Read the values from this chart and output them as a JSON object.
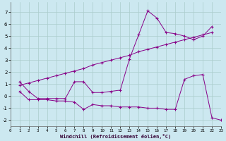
{
  "xlabel": "Windchill (Refroidissement éolien,°C)",
  "bg_color": "#cce8f0",
  "line_color": "#880088",
  "grid_color": "#aacccc",
  "xmin": 0,
  "xmax": 23,
  "ymin": -2.5,
  "ymax": 7.8,
  "yticks": [
    -2,
    -1,
    0,
    1,
    2,
    3,
    4,
    5,
    6,
    7
  ],
  "xticks": [
    0,
    1,
    2,
    3,
    4,
    5,
    6,
    7,
    8,
    9,
    10,
    11,
    12,
    13,
    14,
    15,
    16,
    17,
    18,
    19,
    20,
    21,
    22,
    23
  ],
  "line1_x": [
    1,
    2,
    3,
    4,
    5,
    6,
    7,
    8,
    9,
    10,
    11,
    12,
    13,
    14,
    15,
    16,
    17,
    18,
    19,
    20,
    21,
    22
  ],
  "line1_y": [
    1.2,
    0.4,
    -0.2,
    -0.2,
    -0.2,
    -0.2,
    1.2,
    1.2,
    0.3,
    0.3,
    0.4,
    0.5,
    3.1,
    5.1,
    7.1,
    6.5,
    5.3,
    5.2,
    5.0,
    4.7,
    5.0,
    5.8
  ],
  "line2_x": [
    1,
    2,
    3,
    4,
    5,
    6,
    7,
    8,
    9,
    10,
    11,
    12,
    13,
    14,
    15,
    16,
    17,
    18,
    19,
    20,
    21,
    22
  ],
  "line2_y": [
    0.9,
    1.1,
    1.3,
    1.5,
    1.7,
    1.9,
    2.1,
    2.3,
    2.6,
    2.8,
    3.0,
    3.2,
    3.4,
    3.7,
    3.9,
    4.1,
    4.3,
    4.5,
    4.7,
    4.9,
    5.1,
    5.3
  ],
  "line3_x": [
    1,
    2,
    3,
    4,
    5,
    6,
    7,
    8,
    9,
    10,
    11,
    12,
    13,
    14,
    15,
    16,
    17,
    18,
    19,
    20,
    21,
    22,
    23
  ],
  "line3_y": [
    0.4,
    -0.3,
    -0.3,
    -0.3,
    -0.4,
    -0.4,
    -0.5,
    -1.1,
    -0.7,
    -0.8,
    -0.8,
    -0.9,
    -0.9,
    -0.9,
    -1.0,
    -1.0,
    -1.1,
    -1.1,
    1.4,
    1.7,
    1.8,
    -1.8,
    -2.0
  ]
}
